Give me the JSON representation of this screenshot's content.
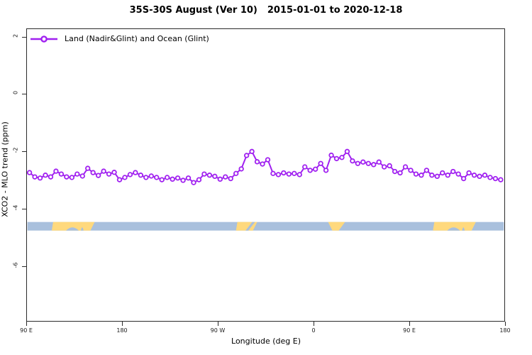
{
  "header": {
    "title_range": "35S-30S August (Ver 10)",
    "title_dates": "2015-01-01 to 2020-12-18"
  },
  "legend": {
    "label": "Land (Nadir&Glint) and Ocean (Glint)",
    "marker": "open-circle-on-line",
    "color": "#a020f0"
  },
  "axes": {
    "x": {
      "title": "Longitude (deg E)",
      "tick_labels": [
        "90 E",
        "180",
        "90 W",
        "0",
        "90 E",
        "180"
      ],
      "tick_positions_deg": [
        0,
        90,
        180,
        270,
        360,
        450
      ]
    },
    "y": {
      "title": "XCO2 - MLO trend (ppm)",
      "tick_labels": [
        "2",
        "0",
        "-2",
        "-4",
        "-6"
      ],
      "tick_values": [
        2,
        0,
        -2,
        -4,
        -6
      ]
    }
  },
  "chart_data": {
    "type": "line",
    "title": "35S-30S August (Ver 10)   2015-01-01 to 2020-12-18",
    "xlabel": "Longitude (deg E)",
    "ylabel": "XCO2 - MLO trend (ppm)",
    "x_axis": {
      "range_deg": [
        0,
        450
      ],
      "ticks_deg": [
        0,
        90,
        180,
        270,
        360,
        450
      ],
      "tick_labels": [
        "90 E",
        "180",
        "90 W",
        "0",
        "90 E",
        "180"
      ],
      "note": "x is longitude starting at 90E increasing eastward and wrapping past 180 and 0 back to 180"
    },
    "y_axis": {
      "range": [
        -8,
        2.3
      ],
      "ticks": [
        2,
        0,
        -2,
        -4,
        -6
      ]
    },
    "grid": false,
    "legend_position": "top-left-inside",
    "series": [
      {
        "name": "Land (Nadir&Glint) and Ocean (Glint)",
        "color": "#a020f0",
        "marker": "open-circle",
        "x_deg": [
          2,
          7,
          12,
          17,
          22,
          27,
          32,
          37,
          42,
          47,
          52,
          57,
          62,
          67,
          72,
          77,
          82,
          87,
          92,
          97,
          102,
          107,
          112,
          117,
          122,
          127,
          132,
          137,
          142,
          147,
          152,
          157,
          162,
          167,
          172,
          177,
          182,
          187,
          192,
          197,
          202,
          207,
          212,
          217,
          222,
          227,
          232,
          237,
          242,
          247,
          252,
          257,
          262,
          267,
          272,
          277,
          282,
          287,
          292,
          297,
          302,
          307,
          312,
          317,
          322,
          327,
          332,
          337,
          342,
          347,
          352,
          357,
          362,
          367,
          372,
          377,
          382,
          387,
          392,
          397,
          402,
          407,
          412,
          417,
          422,
          427,
          432,
          437,
          442,
          447
        ],
        "y_ppm": [
          -2.75,
          -2.9,
          -2.94,
          -2.84,
          -2.9,
          -2.7,
          -2.8,
          -2.9,
          -2.92,
          -2.8,
          -2.87,
          -2.6,
          -2.75,
          -2.85,
          -2.7,
          -2.8,
          -2.74,
          -3.0,
          -2.92,
          -2.82,
          -2.75,
          -2.84,
          -2.92,
          -2.87,
          -2.92,
          -3.0,
          -2.92,
          -2.98,
          -2.94,
          -3.02,
          -2.94,
          -3.1,
          -3.0,
          -2.8,
          -2.84,
          -2.88,
          -2.98,
          -2.9,
          -2.96,
          -2.78,
          -2.62,
          -2.15,
          -2.01,
          -2.37,
          -2.45,
          -2.3,
          -2.78,
          -2.82,
          -2.76,
          -2.8,
          -2.78,
          -2.82,
          -2.55,
          -2.67,
          -2.63,
          -2.43,
          -2.67,
          -2.14,
          -2.26,
          -2.22,
          -2.01,
          -2.34,
          -2.43,
          -2.38,
          -2.43,
          -2.47,
          -2.38,
          -2.55,
          -2.51,
          -2.71,
          -2.76,
          -2.55,
          -2.67,
          -2.8,
          -2.84,
          -2.67,
          -2.84,
          -2.88,
          -2.76,
          -2.84,
          -2.71,
          -2.8,
          -2.96,
          -2.76,
          -2.84,
          -2.88,
          -2.84,
          -2.92,
          -2.96,
          -3.0
        ]
      }
    ],
    "map_band": {
      "description": "land/ocean strip for the 35S-30S latitude band drawn across the plot",
      "y_top_value": -4.48,
      "y_bottom_value": -4.78,
      "ocean_color": "#a9c0dd",
      "land_color": "#ffd97d",
      "land_segments": [
        {
          "name": "australia",
          "from_deg": 23,
          "to_deg": 63.5,
          "shape": "slant"
        },
        {
          "name": "south-america",
          "from_deg": 197,
          "to_deg": 217,
          "shape": "slant"
        },
        {
          "name": "africa",
          "from_deg": 284,
          "to_deg": 300,
          "shape": "taper-bottom"
        },
        {
          "name": "australia-repeat",
          "from_deg": 383,
          "to_deg": 423.5,
          "shape": "slant"
        }
      ],
      "water_cutouts": [
        {
          "name": "great-australian-bight",
          "from_deg": 36.5,
          "to_deg": 48.5,
          "part": "bottom-inlet"
        },
        {
          "name": "spencer-gulf",
          "from_deg": 50.5,
          "to_deg": 53,
          "part": "bottom-inlet"
        },
        {
          "name": "rio-de-la-plata",
          "from_deg": 206,
          "to_deg": 215,
          "part": "diagonal-channel"
        },
        {
          "name": "great-australian-bight-repeat",
          "from_deg": 396.5,
          "to_deg": 408.5,
          "part": "bottom-inlet"
        },
        {
          "name": "spencer-gulf-repeat",
          "from_deg": 410.5,
          "to_deg": 413,
          "part": "bottom-inlet"
        }
      ]
    }
  }
}
